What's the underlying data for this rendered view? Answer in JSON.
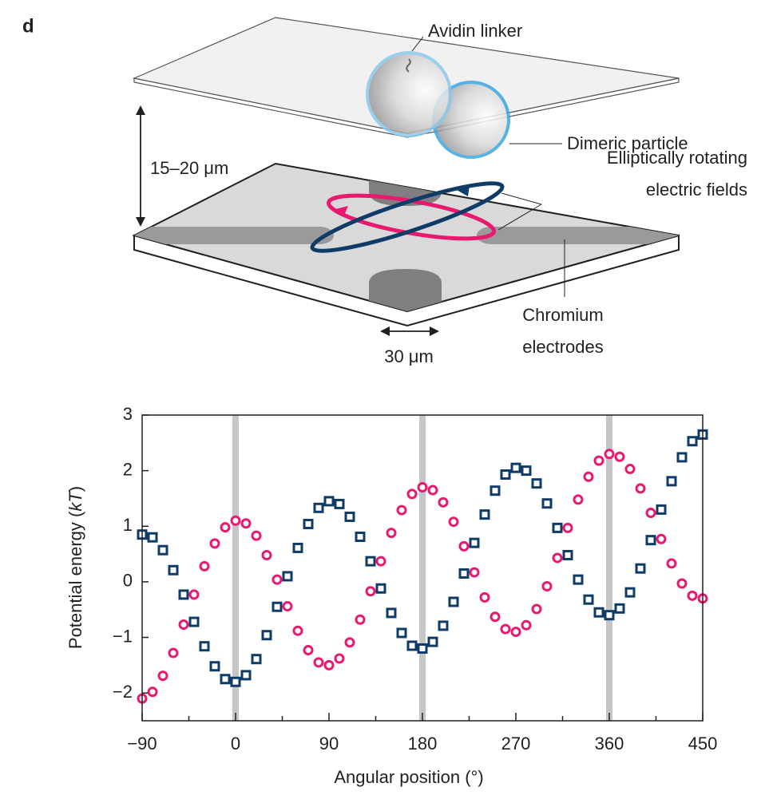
{
  "panel_label": "d",
  "diagram": {
    "avidin_linker": "Avidin linker",
    "dimeric_particle": "Dimeric particle",
    "gap": "15–20 μm",
    "fields": [
      "Elliptically rotating",
      "electric fields"
    ],
    "electrodes": [
      "Chromium",
      "electrodes"
    ],
    "electrode_width": "30 μm"
  },
  "chart_data": {
    "type": "scatter",
    "xlabel": "Angular position (°)",
    "ylabel": [
      "Potential energy (",
      "kT",
      ")"
    ],
    "xlim": [
      -90,
      450
    ],
    "ylim": [
      -2.5,
      3
    ],
    "xticks": [
      {
        "value": -90,
        "label": "−90"
      },
      0,
      90,
      180,
      270,
      360,
      450
    ],
    "xminor_ticks": [
      -45,
      45,
      135,
      225,
      315,
      405
    ],
    "yticks": [
      {
        "value": -2,
        "label": "−2"
      },
      {
        "value": -1,
        "label": "−1"
      },
      0,
      1,
      2,
      3
    ],
    "vlines": [
      0,
      180,
      360
    ],
    "vline_color": "#c6c6c8",
    "x": [
      -90,
      -80,
      -70,
      -60,
      -50,
      -40,
      -30,
      -20,
      -10,
      0,
      10,
      20,
      30,
      40,
      50,
      60,
      70,
      80,
      90,
      100,
      110,
      120,
      130,
      140,
      150,
      160,
      170,
      180,
      190,
      200,
      210,
      220,
      230,
      240,
      250,
      260,
      270,
      280,
      290,
      300,
      310,
      320,
      330,
      340,
      350,
      360,
      370,
      380,
      390,
      400,
      410,
      420,
      430,
      440,
      450
    ],
    "series": [
      {
        "marker": "circle",
        "color": "#e8196e",
        "values": [
          -2.1,
          -1.98,
          -1.69,
          -1.28,
          -0.77,
          -0.23,
          0.28,
          0.69,
          0.98,
          1.1,
          1.05,
          0.83,
          0.48,
          0.04,
          -0.44,
          -0.88,
          -1.23,
          -1.45,
          -1.5,
          -1.38,
          -1.09,
          -0.68,
          -0.17,
          0.37,
          0.88,
          1.29,
          1.58,
          1.7,
          1.65,
          1.43,
          1.08,
          0.64,
          0.17,
          -0.28,
          -0.63,
          -0.85,
          -0.9,
          -0.78,
          -0.49,
          -0.08,
          0.43,
          0.97,
          1.48,
          1.89,
          2.18,
          2.3,
          2.25,
          2.03,
          1.68,
          1.24,
          0.77,
          0.33,
          -0.03,
          -0.25,
          -0.3
        ]
      },
      {
        "marker": "square",
        "color": "#0f3b67",
        "values": [
          0.85,
          0.8,
          0.57,
          0.21,
          -0.23,
          -0.72,
          -1.16,
          -1.52,
          -1.75,
          -1.8,
          -1.68,
          -1.39,
          -0.96,
          -0.45,
          0.1,
          0.61,
          1.04,
          1.33,
          1.45,
          1.4,
          1.17,
          0.81,
          0.37,
          -0.12,
          -0.56,
          -0.92,
          -1.15,
          -1.2,
          -1.08,
          -0.79,
          -0.36,
          0.15,
          0.7,
          1.21,
          1.64,
          1.93,
          2.05,
          2,
          1.77,
          1.41,
          0.97,
          0.48,
          0.04,
          -0.32,
          -0.55,
          -0.6,
          -0.48,
          -0.19,
          0.24,
          0.75,
          1.3,
          1.81,
          2.24,
          2.53,
          2.65
        ]
      }
    ]
  }
}
